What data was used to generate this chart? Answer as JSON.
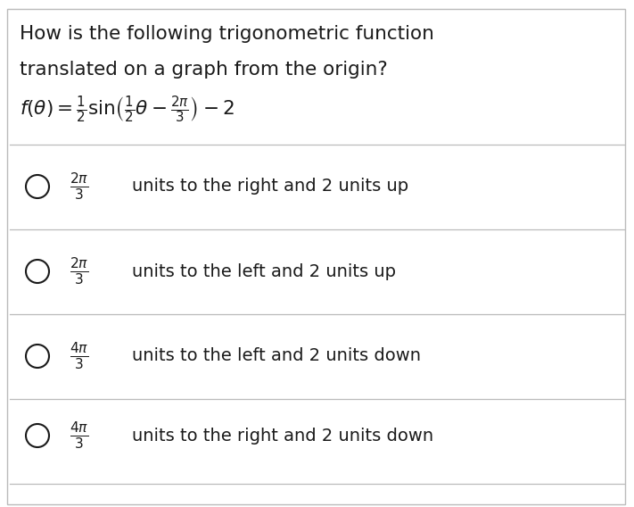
{
  "background_color": "#ffffff",
  "border_color": "#bbbbbb",
  "question_line1": "How is the following trigonometric function",
  "question_line2": "translated on a graph from the origin?",
  "text_color": "#1a1a1a",
  "divider_color": "#bbbbbb",
  "question_fontsize": 15.5,
  "option_fontsize": 14.0,
  "options": [
    {
      "frac": "$\\frac{2\\pi}{3}$",
      "direction": "units to the right and 2 units up"
    },
    {
      "frac": "$\\frac{2\\pi}{3}$",
      "direction": "units to the left and 2 units up"
    },
    {
      "frac": "$\\frac{4\\pi}{3}$",
      "direction": "units to the left and 2 units down"
    },
    {
      "frac": "$\\frac{4\\pi}{3}$",
      "direction": "units to the right and 2 units down"
    }
  ]
}
